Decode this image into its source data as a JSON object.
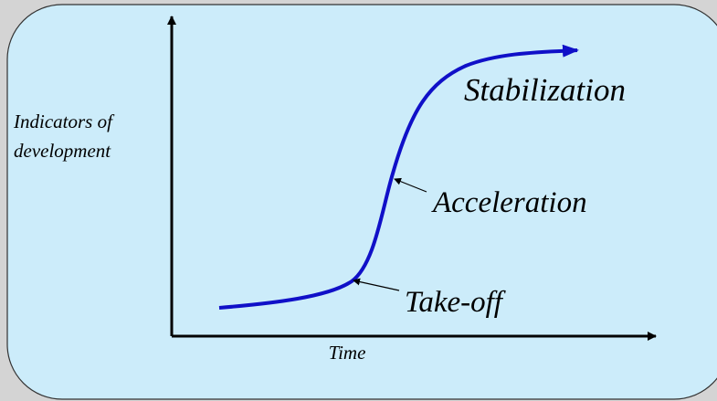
{
  "axis_labels": {
    "y": [
      "Indicators of",
      "development"
    ],
    "x": "Time"
  },
  "phases": [
    {
      "label": "Stabilization"
    },
    {
      "label": "Acceleration"
    },
    {
      "label": "Take-off"
    }
  ]
}
